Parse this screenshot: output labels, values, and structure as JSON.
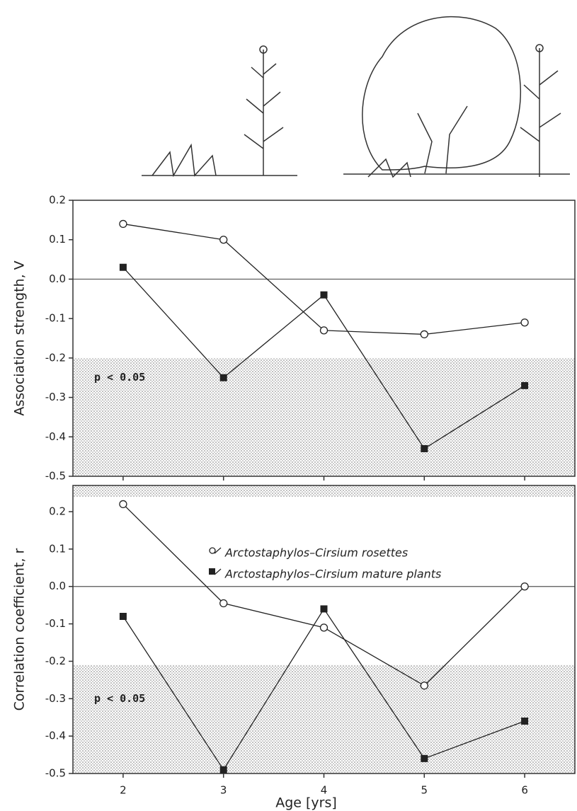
{
  "chart_data": [
    {
      "type": "line",
      "ylabel": "Association strength, V",
      "x": [
        2,
        3,
        4,
        5,
        6
      ],
      "xlim": [
        1.5,
        6.5
      ],
      "xticks": [
        2,
        3,
        4,
        5,
        6
      ],
      "ylim": [
        -0.5,
        0.2
      ],
      "yticks": [
        0.2,
        0.1,
        {
          "value": 0,
          "label": "0.0"
        },
        -0.1,
        -0.2,
        -0.3,
        -0.4,
        -0.5
      ],
      "hline": 0,
      "shaded": [
        [
          -0.5,
          -0.2
        ]
      ],
      "shade_label": "p < 0.05",
      "shade_label_at": -0.25,
      "series": [
        {
          "name": "Arctostaphylos–Cirsium rosettes",
          "marker": "circle",
          "color": "#222222",
          "values": [
            0.14,
            0.1,
            -0.13,
            -0.14,
            -0.11
          ]
        },
        {
          "name": "Arctostaphylos–Cirsium mature plants",
          "marker": "square",
          "color": "#222222",
          "values": [
            0.03,
            -0.25,
            -0.04,
            -0.43,
            -0.27
          ]
        }
      ]
    },
    {
      "type": "line",
      "ylabel": "Correlation coefficient, r",
      "xlabel": "Age [yrs]",
      "x": [
        2,
        3,
        4,
        5,
        6
      ],
      "xlim": [
        1.5,
        6.5
      ],
      "xticks": [
        2,
        3,
        4,
        5,
        6
      ],
      "ylim": [
        -0.5,
        0.27
      ],
      "yticks": [
        0.2,
        0.1,
        {
          "value": 0,
          "label": "0.0"
        },
        -0.1,
        -0.2,
        -0.3,
        -0.4,
        -0.5
      ],
      "hline": 0,
      "shaded": [
        [
          -0.5,
          -0.21
        ],
        [
          0.24,
          0.27
        ]
      ],
      "shade_label": "p < 0.05",
      "shade_label_at": -0.3,
      "legend": true,
      "series": [
        {
          "name": "Arctostaphylos–Cirsium rosettes",
          "marker": "circle",
          "color": "#222222",
          "values": [
            0.22,
            -0.045,
            -0.11,
            -0.265,
            0.0
          ]
        },
        {
          "name": "Arctostaphylos–Cirsium mature plants",
          "marker": "square",
          "color": "#222222",
          "values": [
            -0.08,
            -0.49,
            -0.06,
            -0.46,
            -0.36
          ]
        }
      ]
    }
  ]
}
